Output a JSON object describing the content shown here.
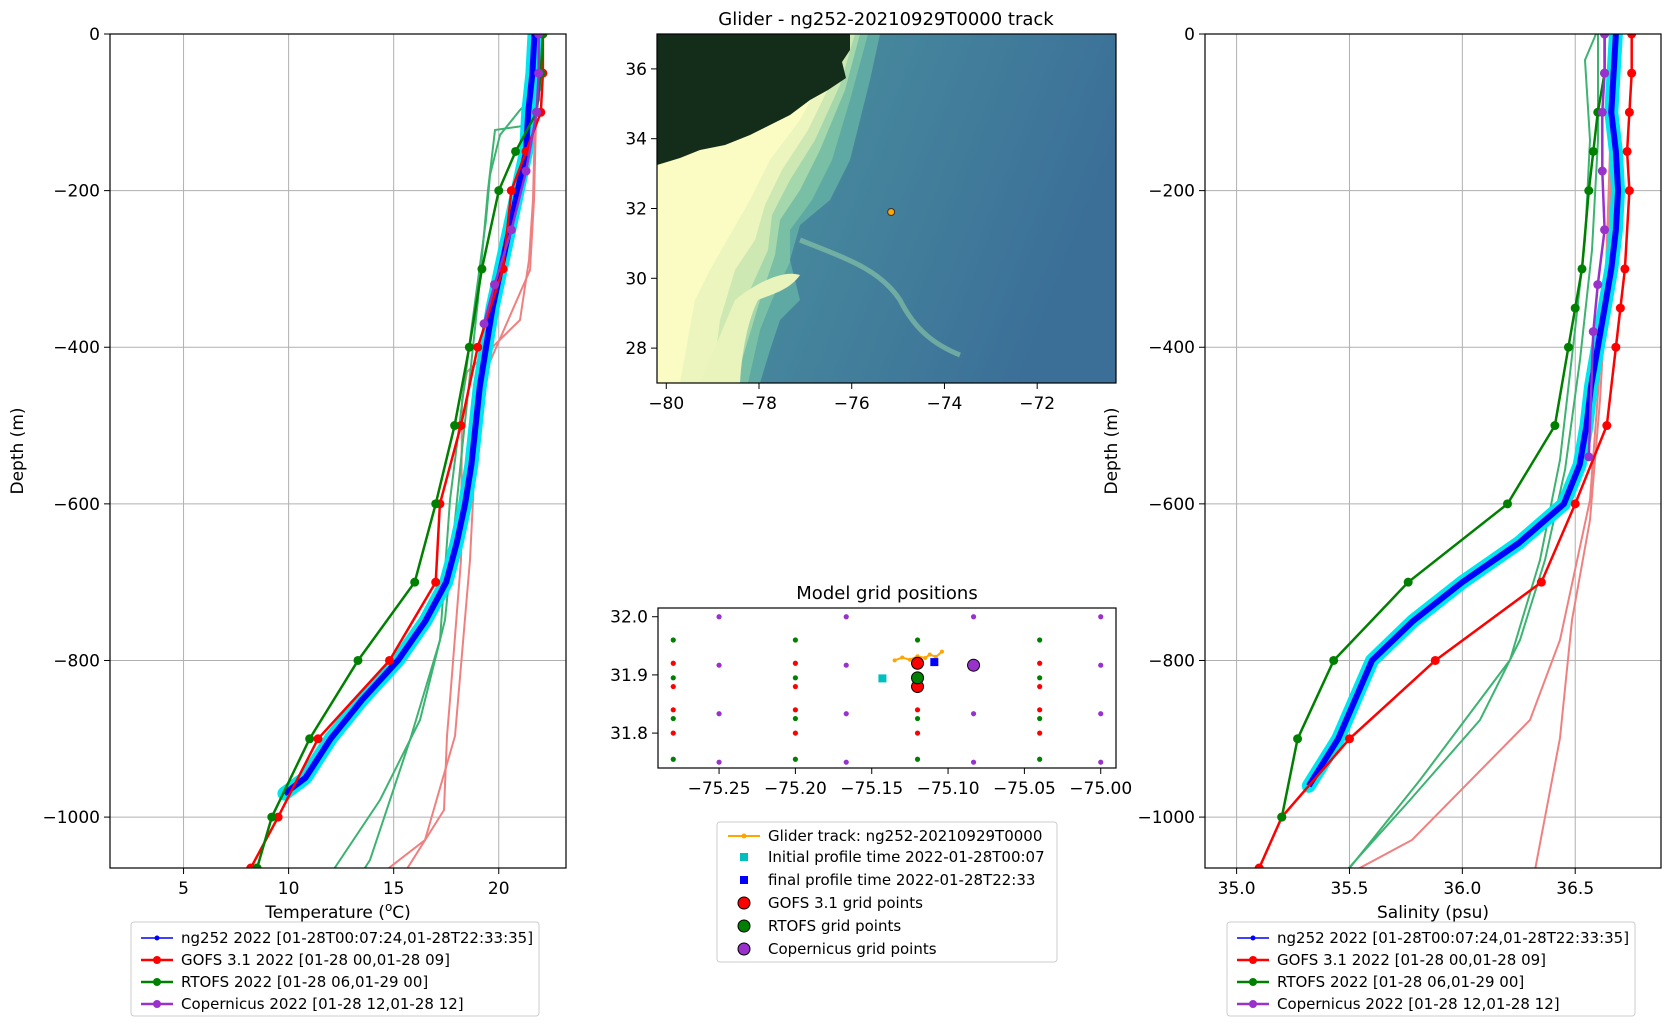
{
  "colors": {
    "glider": "#0000ff",
    "glider_band": "#00e6ee",
    "gofs": "#ff0000",
    "gofs_light": "#f08080",
    "rtofs": "#008000",
    "rtofs_light": "#3cb371",
    "copernicus": "#9932cc",
    "track": "#ffa500",
    "initial": "#00bfbf",
    "final": "#0000ff"
  },
  "chart_data": [
    {
      "id": "temperature",
      "type": "line",
      "xlabel": "Temperature ($^{o}C$)",
      "xlabel_text": "Temperature (",
      "xlabel_sup": "o",
      "xlabel_tail": "C)",
      "ylabel": "Depth (m)",
      "xlim": [
        1.5,
        23.2
      ],
      "ylim": [
        -1065,
        0
      ],
      "xticks": [
        5,
        10,
        15,
        20
      ],
      "yticks": [
        0,
        -200,
        -400,
        -600,
        -800,
        -1000
      ],
      "ytick_labels": [
        "0",
        "−200",
        "−400",
        "−600",
        "−800",
        "−1000"
      ],
      "grid": true,
      "legend": {
        "placement": "below",
        "entries": [
          "ng252 2022 [01-28T00:07:24,01-28T22:33:35]",
          "GOFS 3.1 2022 [01-28 00,01-28 09]",
          "RTOFS 2022 [01-28 06,01-29 00]",
          "Copernicus 2022 [01-28 12,01-28 12]"
        ]
      },
      "series": [
        {
          "name": "ng252 2022 [01-28T00:07:24,01-28T22:33:35]",
          "color_key": "glider",
          "x": [
            21.7,
            21.6,
            21.4,
            21.3,
            20.9,
            20.5,
            20.1,
            19.7,
            19.4,
            19.1,
            18.9,
            18.7,
            18.4,
            18.0,
            17.5,
            16.5,
            15.2,
            13.5,
            12.0,
            10.8,
            9.8
          ],
          "y": [
            0,
            -50,
            -100,
            -150,
            -200,
            -250,
            -300,
            -350,
            -400,
            -450,
            -500,
            -550,
            -600,
            -650,
            -700,
            -750,
            -800,
            -850,
            -900,
            -950,
            -970
          ]
        },
        {
          "name": "GOFS 3.1 2022 [01-28 00,01-28 09]",
          "color_key": "gofs",
          "x": [
            22.1,
            22.1,
            22.0,
            21.3,
            20.6,
            20.2,
            19.0,
            18.2,
            17.2,
            17.0,
            14.8,
            11.4,
            9.5,
            8.2
          ],
          "y": [
            0,
            -50,
            -100,
            -150,
            -200,
            -300,
            -400,
            -500,
            -600,
            -700,
            -800,
            -900,
            -1000,
            -1065
          ]
        },
        {
          "name": "RTOFS 2022 [01-28 06,01-29 00]",
          "color_key": "rtofs",
          "x": [
            22.1,
            22.0,
            21.8,
            20.8,
            20.0,
            19.2,
            18.6,
            17.9,
            17.0,
            16.0,
            13.3,
            11.0,
            9.2,
            8.5
          ],
          "y": [
            0,
            -50,
            -100,
            -150,
            -200,
            -300,
            -400,
            -500,
            -600,
            -700,
            -800,
            -900,
            -1000,
            -1065
          ]
        },
        {
          "name": "Copernicus 2022 [01-28 12,01-28 12]",
          "color_key": "copernicus",
          "x": [
            21.9,
            21.9,
            21.8,
            21.3,
            20.6,
            19.8,
            19.3
          ],
          "y": [
            0,
            -50,
            -100,
            -175,
            -250,
            -320,
            -370
          ]
        }
      ]
    },
    {
      "id": "map",
      "type": "heatmap",
      "title": "Glider - ng252-20210929T0000 track",
      "xlim": [
        -80.2,
        -70.3
      ],
      "ylim": [
        27,
        37
      ],
      "xticks": [
        -80,
        -78,
        -76,
        -74,
        -72
      ],
      "xtick_labels": [
        "−80",
        "−78",
        "−76",
        "−74",
        "−72"
      ],
      "yticks": [
        28,
        30,
        32,
        34,
        36
      ],
      "glider_position": {
        "lon": -75.15,
        "lat": 31.9
      }
    },
    {
      "id": "grid",
      "type": "scatter",
      "title": "Model grid positions",
      "xlim": [
        -75.29,
        -74.99
      ],
      "ylim": [
        31.74,
        32.015
      ],
      "xticks": [
        -75.25,
        -75.2,
        -75.15,
        -75.1,
        -75.05,
        -75.0
      ],
      "xtick_labels": [
        "−75.25",
        "−75.20",
        "−75.15",
        "−75.10",
        "−75.05",
        "−75.00"
      ],
      "yticks": [
        31.8,
        31.9,
        32.0
      ],
      "ytick_labels": [
        "31.8",
        "31.9",
        "32.0"
      ],
      "gofs_grid": {
        "lon": [
          -75.28,
          -75.2,
          -75.12,
          -75.04
        ],
        "lat": [
          31.92,
          31.88,
          31.84,
          31.8
        ]
      },
      "rtofs_grid": {
        "lon": [
          -75.28,
          -75.2,
          -75.12,
          -75.04
        ],
        "lat": [
          31.96,
          31.895,
          31.825,
          31.755
        ]
      },
      "copernicus_grid": {
        "lon": [
          -75.25,
          -75.1667,
          -75.0833,
          -75.0
        ],
        "lat": [
          32.0,
          31.9167,
          31.8333,
          31.75
        ]
      },
      "glider_track": {
        "lon": [
          -75.135,
          -75.13,
          -75.125,
          -75.12,
          -75.115,
          -75.112,
          -75.108,
          -75.104
        ],
        "lat": [
          31.925,
          31.93,
          31.926,
          31.932,
          31.929,
          31.935,
          31.931,
          31.94
        ]
      },
      "initial": {
        "lon": -75.143,
        "lat": 31.894
      },
      "final": {
        "lon": -75.109,
        "lat": 31.922
      },
      "gofs_nearest": [
        {
          "lon": -75.12,
          "lat": 31.92
        },
        {
          "lon": -75.12,
          "lat": 31.88
        }
      ],
      "rtofs_nearest": [
        {
          "lon": -75.12,
          "lat": 31.895
        }
      ],
      "copernicus_nearest": [
        {
          "lon": -75.0833,
          "lat": 31.9167
        }
      ],
      "legend": {
        "placement": "below",
        "entries": [
          "Glider track: ng252-20210929T0000",
          "Initial profile time 2022-01-28T00:07",
          "final profile time 2022-01-28T22:33",
          "GOFS 3.1 grid points",
          "RTOFS grid points",
          "Copernicus grid points"
        ]
      }
    },
    {
      "id": "salinity",
      "type": "line",
      "xlabel": "Salinity (psu)",
      "ylabel": "Depth (m)",
      "xlim": [
        34.86,
        36.88
      ],
      "ylim": [
        -1065,
        0
      ],
      "xticks": [
        35.0,
        35.5,
        36.0,
        36.5
      ],
      "xtick_labels": [
        "35.0",
        "35.5",
        "36.0",
        "36.5"
      ],
      "yticks": [
        0,
        -200,
        -400,
        -600,
        -800,
        -1000
      ],
      "ytick_labels": [
        "0",
        "−200",
        "−400",
        "−600",
        "−800",
        "−1000"
      ],
      "grid": true,
      "legend": {
        "placement": "below",
        "entries": [
          "ng252 2022 [01-28T00:07:24,01-28T22:33:35]",
          "GOFS 3.1 2022 [01-28 00,01-28 09]",
          "RTOFS 2022 [01-28 06,01-29 00]",
          "Copernicus 2022 [01-28 12,01-28 12]"
        ]
      },
      "series": [
        {
          "name": "ng252 2022 [01-28T00:07:24,01-28T22:33:35]",
          "color_key": "glider",
          "x": [
            36.68,
            36.67,
            36.66,
            36.68,
            36.69,
            36.68,
            36.66,
            36.63,
            36.6,
            36.57,
            36.55,
            36.52,
            36.45,
            36.25,
            36.0,
            35.78,
            35.6,
            35.45,
            35.32
          ],
          "y": [
            0,
            -50,
            -100,
            -150,
            -200,
            -250,
            -300,
            -350,
            -400,
            -450,
            -500,
            -550,
            -600,
            -650,
            -700,
            -750,
            -800,
            -900,
            -960
          ]
        },
        {
          "name": "GOFS 3.1 2022 [01-28 00,01-28 09]",
          "color_key": "gofs",
          "x": [
            36.75,
            36.75,
            36.74,
            36.73,
            36.74,
            36.72,
            36.7,
            36.68,
            36.64,
            36.5,
            36.35,
            35.88,
            35.5,
            35.2,
            35.1
          ],
          "y": [
            0,
            -50,
            -100,
            -150,
            -200,
            -300,
            -350,
            -400,
            -500,
            -600,
            -700,
            -800,
            -900,
            -1000,
            -1065
          ]
        },
        {
          "name": "RTOFS 2022 [01-28 06,01-29 00]",
          "color_key": "rtofs",
          "x": [
            36.63,
            36.63,
            36.6,
            36.58,
            36.56,
            36.53,
            36.5,
            36.47,
            36.41,
            36.2,
            35.76,
            35.43,
            35.27,
            35.2
          ],
          "y": [
            0,
            -50,
            -100,
            -150,
            -200,
            -300,
            -350,
            -400,
            -500,
            -600,
            -700,
            -800,
            -900,
            -1000
          ]
        },
        {
          "name": "Copernicus 2022 [01-28 12,01-28 12]",
          "color_key": "copernicus",
          "x": [
            36.63,
            36.63,
            36.62,
            36.62,
            36.63,
            36.6,
            36.58,
            36.56
          ],
          "y": [
            0,
            -50,
            -100,
            -175,
            -250,
            -320,
            -380,
            -540
          ]
        }
      ]
    }
  ]
}
